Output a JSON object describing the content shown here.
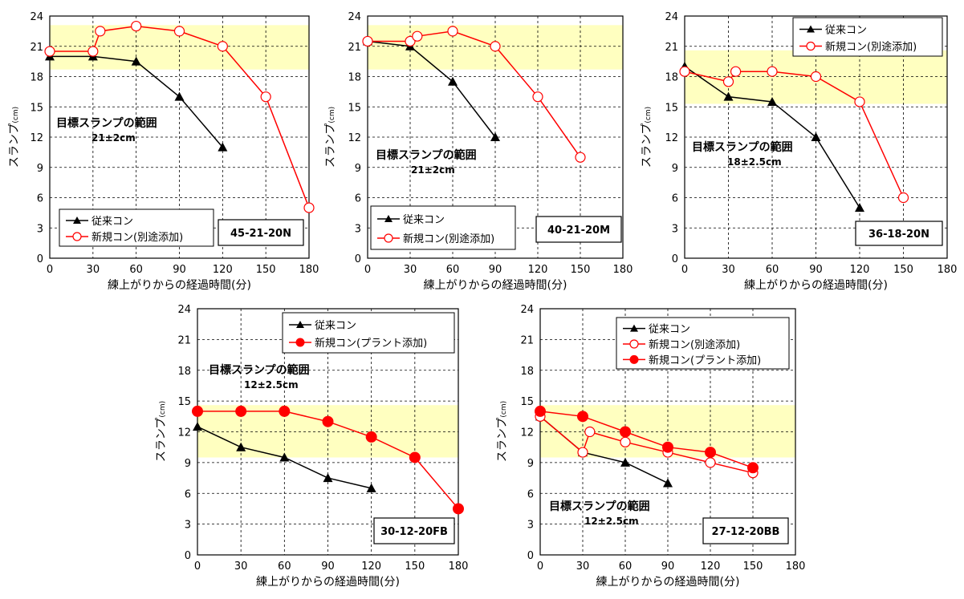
{
  "colors": {
    "target_band": "#ffffc0",
    "conventional": "#000000",
    "new": "#ff0000",
    "grid": "#000000"
  },
  "chart_data": [
    {
      "type": "line",
      "code": "45-21-20N",
      "xlabel": "練上がりからの経過時間(分)",
      "ylabel": "スランプ",
      "ylabel_unit": "(cm)",
      "xlim": [
        0,
        180
      ],
      "ylim": [
        0,
        24
      ],
      "xticks": [
        0,
        30,
        60,
        90,
        120,
        150,
        180
      ],
      "yticks": [
        0,
        3,
        6,
        9,
        12,
        15,
        18,
        21,
        24
      ],
      "grid": true,
      "target_band": [
        18.7,
        23.1
      ],
      "annotation_title": "目標スランプの範囲",
      "annotation_range": "21±2cm",
      "legend_position": "bottom-left",
      "series": [
        {
          "name": "従来コン",
          "marker": "triangle",
          "color": "#000000",
          "x": [
            0,
            30,
            60,
            90,
            120
          ],
          "y": [
            20,
            20,
            19.5,
            16,
            11
          ]
        },
        {
          "name": "新規コン(別途添加)",
          "marker": "circle-open",
          "color": "#ff0000",
          "x": [
            0,
            30,
            35,
            60,
            90,
            120,
            150,
            180
          ],
          "y": [
            20.5,
            20.5,
            22.5,
            23,
            22.5,
            21,
            16,
            5
          ]
        }
      ]
    },
    {
      "type": "line",
      "code": "40-21-20M",
      "xlabel": "練上がりからの経過時間(分)",
      "ylabel": "スランプ",
      "ylabel_unit": "(cm)",
      "xlim": [
        0,
        180
      ],
      "ylim": [
        0,
        24
      ],
      "xticks": [
        0,
        30,
        60,
        90,
        120,
        150,
        180
      ],
      "yticks": [
        0,
        3,
        6,
        9,
        12,
        15,
        18,
        21,
        24
      ],
      "grid": true,
      "target_band": [
        18.7,
        23.1
      ],
      "annotation_title": "目標スランプの範囲",
      "annotation_range": "21±2cm",
      "legend_position": "bottom-left",
      "series": [
        {
          "name": "従来コン",
          "marker": "triangle",
          "color": "#000000",
          "x": [
            0,
            30,
            60,
            90
          ],
          "y": [
            21.5,
            21,
            17.5,
            12
          ]
        },
        {
          "name": "新規コン(別途添加)",
          "marker": "circle-open",
          "color": "#ff0000",
          "x": [
            0,
            30,
            35,
            60,
            90,
            120,
            150
          ],
          "y": [
            21.5,
            21.5,
            22,
            22.5,
            21,
            16,
            10
          ]
        }
      ]
    },
    {
      "type": "line",
      "code": "36-18-20N",
      "xlabel": "練上がりからの経過時間(分)",
      "ylabel": "スランプ",
      "ylabel_unit": "(cm)",
      "xlim": [
        0,
        180
      ],
      "ylim": [
        0,
        24
      ],
      "xticks": [
        0,
        30,
        60,
        90,
        120,
        150,
        180
      ],
      "yticks": [
        0,
        3,
        6,
        9,
        12,
        15,
        18,
        21,
        24
      ],
      "grid": true,
      "target_band": [
        15.3,
        20.6
      ],
      "annotation_title": "目標スランプの範囲",
      "annotation_range": "18±2.5cm",
      "legend_position": "top-right",
      "series": [
        {
          "name": "従来コン",
          "marker": "triangle",
          "color": "#000000",
          "x": [
            0,
            30,
            60,
            90,
            120
          ],
          "y": [
            19,
            16,
            15.5,
            12,
            5
          ]
        },
        {
          "name": "新規コン(別途添加)",
          "marker": "circle-open",
          "color": "#ff0000",
          "x": [
            0,
            30,
            35,
            60,
            90,
            120,
            150
          ],
          "y": [
            18.5,
            17.5,
            18.5,
            18.5,
            18,
            15.5,
            6
          ]
        }
      ]
    },
    {
      "type": "line",
      "code": "30-12-20FB",
      "xlabel": "練上がりからの経過時間(分)",
      "ylabel": "スランプ",
      "ylabel_unit": "(cm)",
      "xlim": [
        0,
        180
      ],
      "ylim": [
        0,
        24
      ],
      "xticks": [
        0,
        30,
        60,
        90,
        120,
        150,
        180
      ],
      "yticks": [
        0,
        3,
        6,
        9,
        12,
        15,
        18,
        21,
        24
      ],
      "grid": true,
      "target_band": [
        9.5,
        14.6
      ],
      "annotation_title": "目標スランプの範囲",
      "annotation_range": "12±2.5cm",
      "legend_position": "top-right",
      "series": [
        {
          "name": "従来コン",
          "marker": "triangle",
          "color": "#000000",
          "x": [
            0,
            30,
            60,
            90,
            120
          ],
          "y": [
            12.5,
            10.5,
            9.5,
            7.5,
            6.5
          ]
        },
        {
          "name": "新規コン(プラント添加)",
          "marker": "circle-filled",
          "color": "#ff0000",
          "x": [
            0,
            30,
            60,
            90,
            120,
            150,
            180
          ],
          "y": [
            14,
            14,
            14,
            13,
            11.5,
            9.5,
            4.5
          ]
        }
      ]
    },
    {
      "type": "line",
      "code": "27-12-20BB",
      "xlabel": "練上がりからの経過時間(分)",
      "ylabel": "スランプ",
      "ylabel_unit": "(cm)",
      "xlim": [
        0,
        180
      ],
      "ylim": [
        0,
        24
      ],
      "xticks": [
        0,
        30,
        60,
        90,
        120,
        150,
        180
      ],
      "yticks": [
        0,
        3,
        6,
        9,
        12,
        15,
        18,
        21,
        24
      ],
      "grid": true,
      "target_band": [
        9.5,
        14.6
      ],
      "annotation_title": "目標スランプの範囲",
      "annotation_range": "12±2.5cm",
      "legend_position": "top-right",
      "series": [
        {
          "name": "従来コン",
          "marker": "triangle",
          "color": "#000000",
          "x": [
            0,
            30,
            60,
            90
          ],
          "y": [
            13.5,
            10,
            9,
            7
          ]
        },
        {
          "name": "新規コン(別途添加)",
          "marker": "circle-open",
          "color": "#ff0000",
          "x": [
            0,
            30,
            35,
            60,
            90,
            120,
            150
          ],
          "y": [
            13.5,
            10,
            12,
            11,
            10,
            9,
            8
          ]
        },
        {
          "name": "新規コン(プラント添加)",
          "marker": "circle-filled",
          "color": "#ff0000",
          "x": [
            0,
            30,
            60,
            90,
            120,
            150
          ],
          "y": [
            14,
            13.5,
            12,
            10.5,
            10,
            8.5
          ]
        }
      ]
    }
  ]
}
